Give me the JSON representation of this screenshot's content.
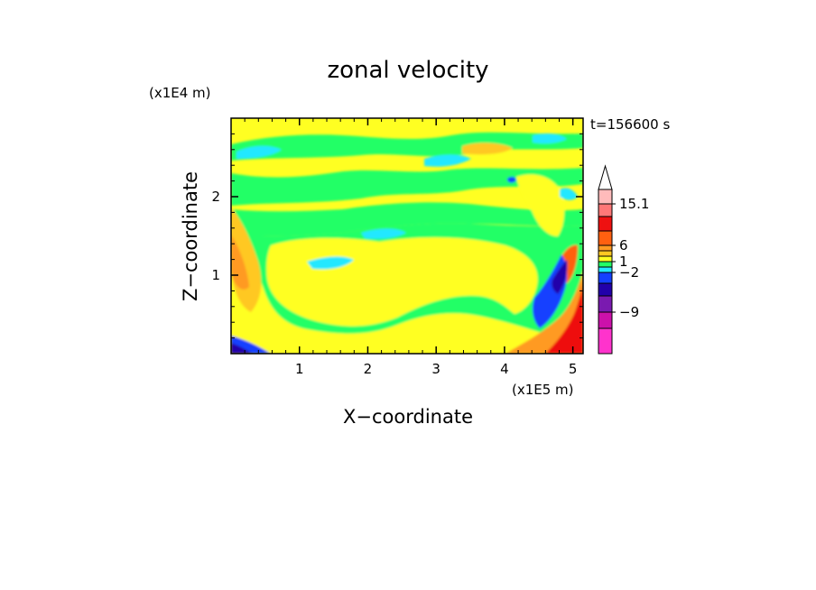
{
  "chart_data": {
    "type": "heatmap",
    "title": "zonal velocity",
    "xlabel": "X−coordinate",
    "ylabel": "Z−coordinate",
    "x_unit": "(x1E5 m)",
    "y_unit": "(x1E4 m)",
    "time_label": "t=156600 s",
    "xlim": [
      0,
      5.15
    ],
    "ylim": [
      0,
      3.0
    ],
    "x_ticks": [
      {
        "value": 1,
        "label": "1"
      },
      {
        "value": 2,
        "label": "2"
      },
      {
        "value": 3,
        "label": "3"
      },
      {
        "value": 4,
        "label": "4"
      },
      {
        "value": 5,
        "label": "5"
      }
    ],
    "y_ticks": [
      {
        "value": 1,
        "label": "1"
      },
      {
        "value": 2,
        "label": "2"
      }
    ],
    "colorbar": {
      "levels": [
        {
          "color": "#ff33cc"
        },
        {
          "color": "#cc11aa"
        },
        {
          "color": "#7a1ab0"
        },
        {
          "color": "#2200aa"
        },
        {
          "color": "#1440ff"
        },
        {
          "color": "#22e8ff"
        },
        {
          "color": "#22ff66"
        },
        {
          "color": "#ffff22"
        },
        {
          "color": "#ffc822"
        },
        {
          "color": "#ff9a22"
        },
        {
          "color": "#ff6010"
        },
        {
          "color": "#ee1111"
        },
        {
          "color": "#ff7777"
        },
        {
          "color": "#ffbbbb"
        }
      ],
      "labels": [
        {
          "text": "15.1"
        },
        {
          "text": "6"
        },
        {
          "text": "1"
        },
        {
          "text": "−2"
        },
        {
          "text": "−9"
        }
      ],
      "extend": "max"
    }
  }
}
